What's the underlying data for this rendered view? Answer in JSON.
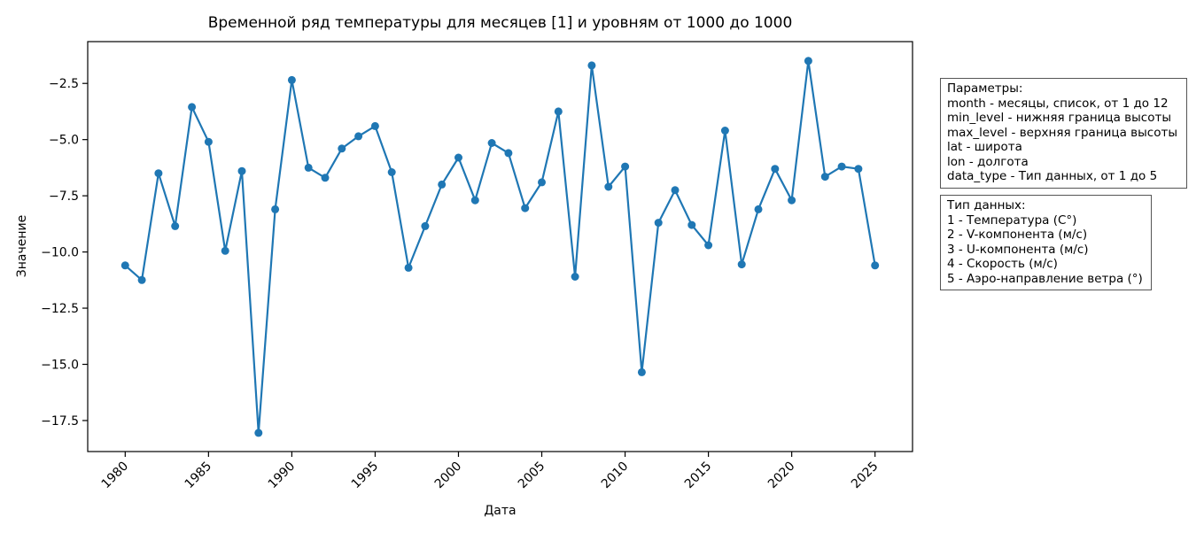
{
  "chart_data": {
    "type": "line",
    "title": "Временной ряд температуры для месяцев [1] и уровням от 1000 до 1000",
    "xlabel": "Дата",
    "ylabel": "Значение",
    "x": [
      1980,
      1981,
      1982,
      1983,
      1984,
      1985,
      1986,
      1987,
      1988,
      1989,
      1990,
      1991,
      1992,
      1993,
      1994,
      1995,
      1996,
      1997,
      1998,
      1999,
      2000,
      2001,
      2002,
      2003,
      2004,
      2005,
      2006,
      2007,
      2008,
      2009,
      2010,
      2011,
      2012,
      2013,
      2014,
      2015,
      2016,
      2017,
      2018,
      2019,
      2020,
      2021,
      2022,
      2023,
      2024,
      2025
    ],
    "values": [
      -10.6,
      -11.25,
      -6.5,
      -8.85,
      -3.55,
      -5.1,
      -9.95,
      -6.4,
      -18.05,
      -8.1,
      -2.35,
      -6.25,
      -6.7,
      -5.4,
      -4.85,
      -4.4,
      -6.45,
      -10.7,
      -8.85,
      -7.0,
      -5.8,
      -7.7,
      -5.15,
      -5.6,
      -8.05,
      -6.9,
      -3.75,
      -11.1,
      -1.7,
      -7.1,
      -6.2,
      -15.35,
      -8.7,
      -7.25,
      -8.8,
      -9.7,
      -4.6,
      -10.55,
      -8.1,
      -6.3,
      -7.7,
      -1.5,
      -6.65,
      -6.2,
      -6.3,
      -10.6
    ],
    "xticks": [
      1980,
      1985,
      1990,
      1995,
      2000,
      2005,
      2010,
      2015,
      2020,
      2025
    ],
    "yticks": [
      -2.5,
      -5.0,
      -7.5,
      -10.0,
      -12.5,
      -15.0,
      -17.5
    ],
    "xlim": [
      1977.75,
      2027.25
    ],
    "ylim": [
      -18.88,
      -0.64
    ],
    "line_color": "#1f77b4",
    "marker": "circle",
    "grid": false,
    "legend": "none",
    "xtick_rotation": 45
  },
  "param_box": {
    "lines": [
      "Параметры:",
      "month - месяцы, список, от 1 до 12",
      "min_level - нижняя граница высоты",
      "max_level - верхняя граница высоты",
      "lat - широта",
      "lon - долгота",
      "data_type - Тип данных, от 1 до 5"
    ]
  },
  "datatype_box": {
    "lines": [
      "Тип данных:",
      "1 - Температура (C°)",
      "2 - V-компонента (м/с)",
      "3 - U-компонента (м/с)",
      "4 - Скорость (м/с)",
      "5 - Аэро-направление ветра (°)"
    ]
  }
}
